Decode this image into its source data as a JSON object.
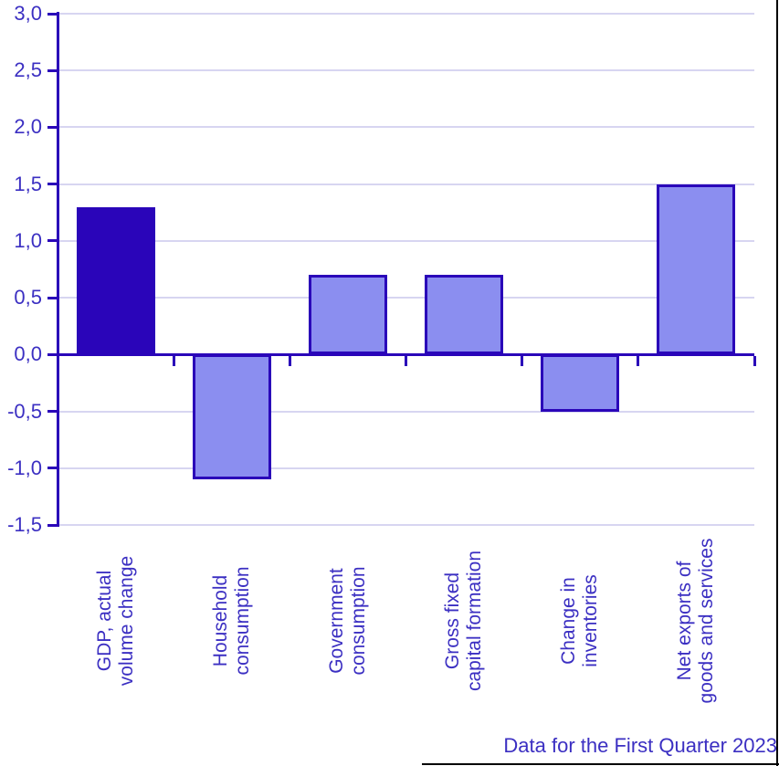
{
  "chart_data": {
    "type": "bar",
    "title": "",
    "caption": "Data for the First Quarter 2023",
    "categories": [
      [
        "GDP, actual",
        "volume change"
      ],
      [
        "Household",
        "consumption"
      ],
      [
        "Government",
        "consumption"
      ],
      [
        "Gross fixed",
        "capital formation"
      ],
      [
        "Change in",
        "inventories"
      ],
      [
        "Net exports of",
        "goods and services"
      ]
    ],
    "values": [
      1.3,
      -1.1,
      0.7,
      0.7,
      -0.5,
      1.5
    ],
    "ylim": [
      -1.5,
      3.0
    ],
    "ytick_step": 0.5,
    "yticks": [
      3.0,
      2.5,
      2.0,
      1.5,
      1.0,
      0.5,
      0.0,
      -0.5,
      -1.0,
      -1.5
    ],
    "ytick_labels": [
      "3,0",
      "2,5",
      "2,0",
      "1,5",
      "1,0",
      "0,5",
      "0,0",
      "-0,5",
      "-1,0",
      "-1,5"
    ],
    "decimal_separator": ",",
    "grid": true,
    "legend": "none",
    "highlight_index": 0,
    "colors": {
      "highlight_bar": "#2a05b9",
      "bar_fill": "#8b8ef0",
      "bar_border": "#2a05b9",
      "axis": "#2a05b9",
      "grid": "#d7d5f1",
      "text": "#3b2fc2",
      "frame": "#000000"
    }
  }
}
